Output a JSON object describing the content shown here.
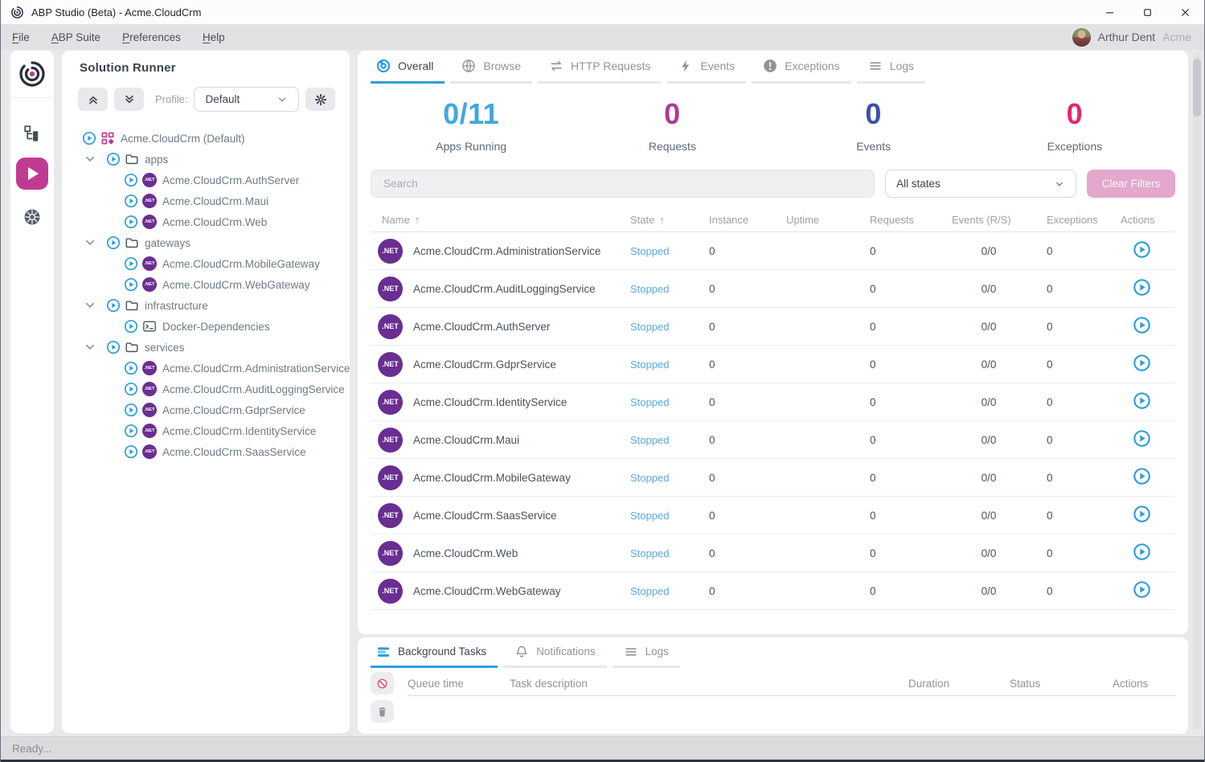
{
  "window": {
    "title": "ABP Studio (Beta) - Acme.CloudCrm",
    "controls": [
      {
        "name": "minimize",
        "icon": "minimize-icon"
      },
      {
        "name": "maximize",
        "icon": "maximize-icon"
      },
      {
        "name": "close",
        "icon": "close-icon"
      }
    ]
  },
  "menu": {
    "items": [
      "File",
      "ABP Suite",
      "Preferences",
      "Help"
    ],
    "user": {
      "name": "Arthur Dent",
      "tenant": "Acme"
    }
  },
  "rail": {
    "items": [
      {
        "name": "solution-explorer",
        "icon": "solution-explorer-icon",
        "active": false
      },
      {
        "name": "solution-runner",
        "icon": "play-icon",
        "active": true
      },
      {
        "name": "kubernetes",
        "icon": "kubernetes-icon",
        "active": false
      }
    ]
  },
  "solution_runner": {
    "title": "Solution Runner",
    "profile_label": "Profile:",
    "profile_value": "Default",
    "net_badge_label": ".NET",
    "tree": [
      {
        "level": 0,
        "type": "solution",
        "label": "Acme.CloudCrm (Default)"
      },
      {
        "level": 1,
        "type": "folder",
        "label": "apps"
      },
      {
        "level": 2,
        "type": "app",
        "label": "Acme.CloudCrm.AuthServer"
      },
      {
        "level": 2,
        "type": "app",
        "label": "Acme.CloudCrm.Maui"
      },
      {
        "level": 2,
        "type": "app",
        "label": "Acme.CloudCrm.Web"
      },
      {
        "level": 1,
        "type": "folder",
        "label": "gateways"
      },
      {
        "level": 2,
        "type": "app",
        "label": "Acme.CloudCrm.MobileGateway"
      },
      {
        "level": 2,
        "type": "app",
        "label": "Acme.CloudCrm.WebGateway"
      },
      {
        "level": 1,
        "type": "folder",
        "label": "infrastructure"
      },
      {
        "level": 2,
        "type": "terminal",
        "label": "Docker-Dependencies"
      },
      {
        "level": 1,
        "type": "folder",
        "label": "services"
      },
      {
        "level": 2,
        "type": "app",
        "label": "Acme.CloudCrm.AdministrationService"
      },
      {
        "level": 2,
        "type": "app",
        "label": "Acme.CloudCrm.AuditLoggingService"
      },
      {
        "level": 2,
        "type": "app",
        "label": "Acme.CloudCrm.GdprService"
      },
      {
        "level": 2,
        "type": "app",
        "label": "Acme.CloudCrm.IdentityService"
      },
      {
        "level": 2,
        "type": "app",
        "label": "Acme.CloudCrm.SaasService"
      }
    ]
  },
  "main": {
    "tabs": [
      {
        "label": "Overall",
        "icon": "overall-icon",
        "active": true
      },
      {
        "label": "Browse",
        "icon": "globe-icon",
        "active": false
      },
      {
        "label": "HTTP Requests",
        "icon": "http-requests-icon",
        "active": false
      },
      {
        "label": "Events",
        "icon": "events-icon",
        "active": false
      },
      {
        "label": "Exceptions",
        "icon": "exceptions-icon",
        "active": false
      },
      {
        "label": "Logs",
        "icon": "logs-icon",
        "active": false
      }
    ],
    "stats": [
      {
        "value": "0/11",
        "label": "Apps Running",
        "color": "#41a8dc"
      },
      {
        "value": "0",
        "label": "Requests",
        "color": "#aa3a98"
      },
      {
        "value": "0",
        "label": "Events",
        "color": "#3c4fae"
      },
      {
        "value": "0",
        "label": "Exceptions",
        "color": "#e62573"
      }
    ],
    "search_placeholder": "Search",
    "state_filter_value": "All states",
    "clear_filters_label": "Clear Filters",
    "table": {
      "columns": [
        {
          "label": "Name",
          "sorted": true
        },
        {
          "label": "State",
          "sorted": true
        },
        {
          "label": "Instance",
          "sorted": false
        },
        {
          "label": "Uptime",
          "sorted": false
        },
        {
          "label": "Requests",
          "sorted": false
        },
        {
          "label": "Events (R/S)",
          "sorted": false
        },
        {
          "label": "Exceptions",
          "sorted": false
        },
        {
          "label": "Actions",
          "sorted": false
        }
      ],
      "rows": [
        {
          "name": "Acme.CloudCrm.AdministrationService",
          "state": "Stopped",
          "instance": "0",
          "uptime": "",
          "requests": "0",
          "events": "0/0",
          "exceptions": "0"
        },
        {
          "name": "Acme.CloudCrm.AuditLoggingService",
          "state": "Stopped",
          "instance": "0",
          "uptime": "",
          "requests": "0",
          "events": "0/0",
          "exceptions": "0"
        },
        {
          "name": "Acme.CloudCrm.AuthServer",
          "state": "Stopped",
          "instance": "0",
          "uptime": "",
          "requests": "0",
          "events": "0/0",
          "exceptions": "0"
        },
        {
          "name": "Acme.CloudCrm.GdprService",
          "state": "Stopped",
          "instance": "0",
          "uptime": "",
          "requests": "0",
          "events": "0/0",
          "exceptions": "0"
        },
        {
          "name": "Acme.CloudCrm.IdentityService",
          "state": "Stopped",
          "instance": "0",
          "uptime": "",
          "requests": "0",
          "events": "0/0",
          "exceptions": "0"
        },
        {
          "name": "Acme.CloudCrm.Maui",
          "state": "Stopped",
          "instance": "0",
          "uptime": "",
          "requests": "0",
          "events": "0/0",
          "exceptions": "0"
        },
        {
          "name": "Acme.CloudCrm.MobileGateway",
          "state": "Stopped",
          "instance": "0",
          "uptime": "",
          "requests": "0",
          "events": "0/0",
          "exceptions": "0"
        },
        {
          "name": "Acme.CloudCrm.SaasService",
          "state": "Stopped",
          "instance": "0",
          "uptime": "",
          "requests": "0",
          "events": "0/0",
          "exceptions": "0"
        },
        {
          "name": "Acme.CloudCrm.Web",
          "state": "Stopped",
          "instance": "0",
          "uptime": "",
          "requests": "0",
          "events": "0/0",
          "exceptions": "0"
        },
        {
          "name": "Acme.CloudCrm.WebGateway",
          "state": "Stopped",
          "instance": "0",
          "uptime": "",
          "requests": "0",
          "events": "0/0",
          "exceptions": "0"
        }
      ]
    }
  },
  "bottom": {
    "tabs": [
      {
        "label": "Background Tasks",
        "icon": "background-tasks-icon",
        "active": true
      },
      {
        "label": "Notifications",
        "icon": "bell-icon",
        "active": false
      },
      {
        "label": "Logs",
        "icon": "logs-icon",
        "active": false
      }
    ],
    "columns": [
      "Queue time",
      "Task description",
      "Duration",
      "Status",
      "Actions"
    ]
  },
  "status_bar": {
    "text": "Ready..."
  },
  "colors": {
    "accent_magenta": "#c13a92",
    "accent_cyan": "#2f9fd8",
    "net_purple": "#6a2d91",
    "state_stopped": "#5aa8dd"
  }
}
